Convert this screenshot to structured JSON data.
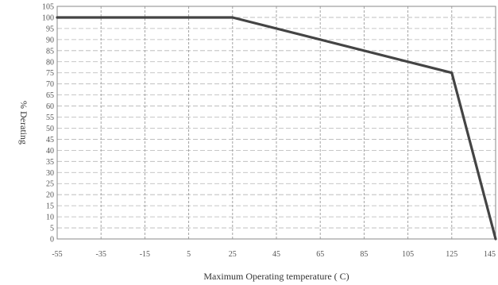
{
  "chart_data": {
    "type": "line",
    "title": "",
    "xlabel": "Maximum Operating temperature ( C)",
    "ylabel": "% Derating",
    "xlim": [
      -55,
      145
    ],
    "ylim": [
      0,
      105
    ],
    "x_ticks": [
      -55,
      -35,
      -15,
      5,
      25,
      45,
      65,
      85,
      105,
      125,
      145
    ],
    "x_tick_labels": [
      "-55",
      "-35",
      "-15",
      "5",
      "25",
      "45",
      "65",
      "85",
      "105",
      "125",
      "145"
    ],
    "y_ticks": [
      0,
      5,
      10,
      15,
      20,
      25,
      30,
      35,
      40,
      45,
      50,
      55,
      60,
      65,
      70,
      75,
      80,
      85,
      90,
      95,
      100,
      105
    ],
    "y_tick_labels": [
      "0",
      "5",
      "10",
      "15",
      "20",
      "25",
      "30",
      "35",
      "40",
      "45",
      "50",
      "55",
      "60",
      "65",
      "70",
      "75",
      "80",
      "85",
      "90",
      "95",
      "100",
      "105"
    ],
    "grid": true,
    "series": [
      {
        "name": "",
        "x": [
          -55,
          25,
          125,
          145
        ],
        "y": [
          100,
          100,
          75,
          0
        ]
      }
    ]
  }
}
